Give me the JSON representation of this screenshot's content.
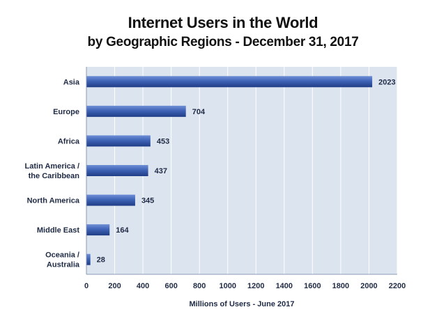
{
  "title_line1": "Internet Users in the World",
  "title_line2": "by Geographic Regions -  December 31, 2017",
  "chart_data": {
    "type": "bar",
    "orientation": "horizontal",
    "title": "Internet Users in the World by Geographic Regions -  December 31, 2017",
    "categories": [
      "Asia",
      "Europe",
      "Africa",
      "Latin America / the Caribbean",
      "North America",
      "Middle East",
      "Oceania  / Australia"
    ],
    "category_lines": [
      [
        "Asia"
      ],
      [
        "Europe"
      ],
      [
        "Africa"
      ],
      [
        "Latin America /",
        "the Caribbean"
      ],
      [
        "North America"
      ],
      [
        "Middle East"
      ],
      [
        "Oceania  /",
        "Australia"
      ]
    ],
    "values": [
      2023,
      704,
      453,
      437,
      345,
      164,
      28
    ],
    "xlabel": "Millions of Users - June 2017",
    "ylabel": "",
    "xlim": [
      0,
      2200
    ],
    "xticks": [
      0,
      200,
      400,
      600,
      800,
      1000,
      1200,
      1400,
      1600,
      1800,
      2000,
      2200
    ],
    "grid": true,
    "bar_color": "#3a5fb0",
    "plot_background": "#dce4f0"
  }
}
